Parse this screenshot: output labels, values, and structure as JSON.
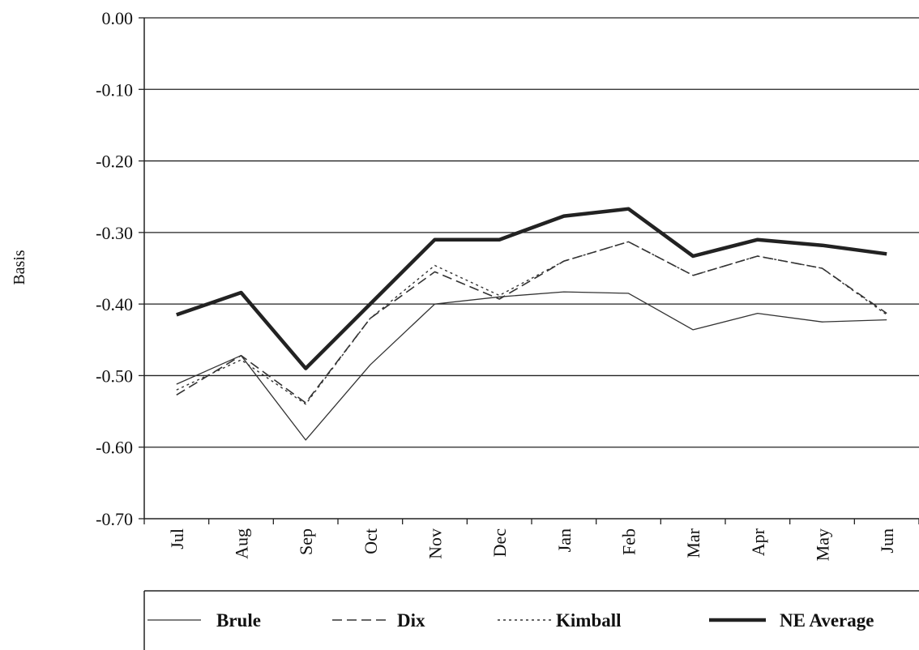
{
  "chart_data": {
    "type": "line",
    "title": "",
    "xlabel": "",
    "ylabel": "Basis",
    "categories": [
      "Jul",
      "Aug",
      "Sep",
      "Oct",
      "Nov",
      "Dec",
      "Jan",
      "Feb",
      "Mar",
      "Apr",
      "May",
      "Jun"
    ],
    "y_ticks": [
      "0.00",
      "-0.10",
      "-0.20",
      "-0.30",
      "-0.40",
      "-0.50",
      "-0.60",
      "-0.70"
    ],
    "ylim": [
      -0.7,
      0.0
    ],
    "grid": true,
    "legend_position": "bottom",
    "series": [
      {
        "name": "Brule",
        "style": "thin-solid",
        "values": [
          -0.512,
          -0.472,
          -0.59,
          -0.485,
          -0.4,
          -0.39,
          -0.383,
          -0.385,
          -0.436,
          -0.413,
          -0.425,
          -0.422
        ]
      },
      {
        "name": "Dix",
        "style": "dashed",
        "values": [
          -0.527,
          -0.472,
          -0.538,
          -0.42,
          -0.355,
          -0.393,
          -0.34,
          -0.313,
          -0.36,
          -0.333,
          -0.35,
          -0.413
        ]
      },
      {
        "name": "Kimball",
        "style": "dotted",
        "values": [
          -0.52,
          -0.478,
          -0.54,
          -0.42,
          -0.346,
          -0.388,
          -0.34,
          -0.313,
          -0.36,
          -0.333,
          -0.35,
          -0.415
        ]
      },
      {
        "name": "NE Average",
        "style": "thick-solid",
        "values": [
          -0.415,
          -0.384,
          -0.49,
          -0.4,
          -0.31,
          -0.31,
          -0.277,
          -0.267,
          -0.333,
          -0.31,
          -0.318,
          -0.33
        ]
      }
    ]
  }
}
